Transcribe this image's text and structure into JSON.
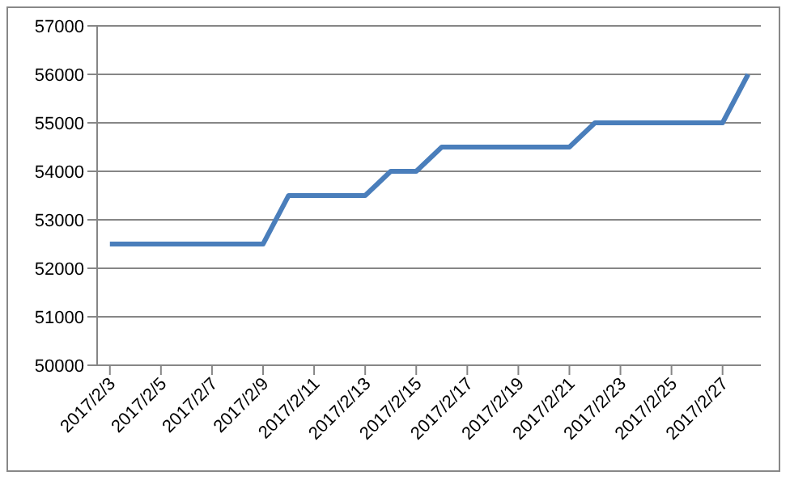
{
  "chart_data": {
    "type": "line",
    "x": [
      "2017-02-03",
      "2017-02-04",
      "2017-02-05",
      "2017-02-06",
      "2017-02-07",
      "2017-02-08",
      "2017-02-09",
      "2017-02-10",
      "2017-02-11",
      "2017-02-12",
      "2017-02-13",
      "2017-02-14",
      "2017-02-15",
      "2017-02-16",
      "2017-02-17",
      "2017-02-18",
      "2017-02-19",
      "2017-02-20",
      "2017-02-21",
      "2017-02-22",
      "2017-02-23",
      "2017-02-24",
      "2017-02-25",
      "2017-02-26",
      "2017-02-27",
      "2017-02-28"
    ],
    "series": [
      {
        "color": "#4a7ebb",
        "values": [
          52500,
          52500,
          52500,
          52500,
          52500,
          52500,
          52500,
          53500,
          53500,
          53500,
          53500,
          54000,
          54000,
          54500,
          54500,
          54500,
          54500,
          54500,
          54500,
          55000,
          55000,
          55000,
          55000,
          55000,
          55000,
          56000
        ]
      }
    ],
    "xlim": [
      "2017-02-02T12:00",
      "2017-02-28T12:00"
    ],
    "xticks": [
      {
        "value": "2017-02-03",
        "label": "2017/2/3"
      },
      {
        "value": "2017-02-05",
        "label": "2017/2/5"
      },
      {
        "value": "2017-02-07",
        "label": "2017/2/7"
      },
      {
        "value": "2017-02-09",
        "label": "2017/2/9"
      },
      {
        "value": "2017-02-11",
        "label": "2017/2/11"
      },
      {
        "value": "2017-02-13",
        "label": "2017/2/13"
      },
      {
        "value": "2017-02-15",
        "label": "2017/2/15"
      },
      {
        "value": "2017-02-17",
        "label": "2017/2/17"
      },
      {
        "value": "2017-02-19",
        "label": "2017/2/19"
      },
      {
        "value": "2017-02-21",
        "label": "2017/2/21"
      },
      {
        "value": "2017-02-23",
        "label": "2017/2/23"
      },
      {
        "value": "2017-02-25",
        "label": "2017/2/25"
      },
      {
        "value": "2017-02-27",
        "label": "2017/2/27"
      }
    ],
    "ylim": [
      50000,
      57000
    ],
    "yticks": [
      50000,
      51000,
      52000,
      53000,
      54000,
      55000,
      56000,
      57000
    ],
    "grid": "y",
    "legend": false,
    "marker": "none",
    "line_style": "solid"
  }
}
